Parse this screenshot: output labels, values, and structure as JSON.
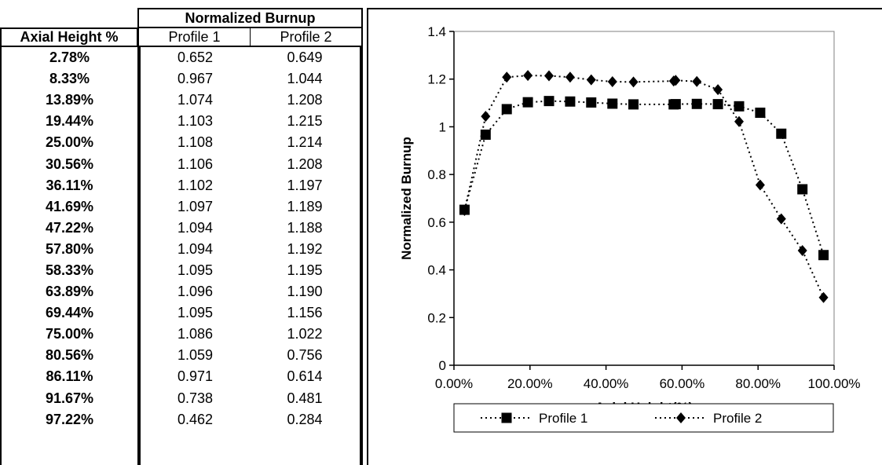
{
  "table": {
    "group_header": "Normalized Burnup",
    "col_axial_header": "Axial Height %",
    "col_p1_header": "Profile 1",
    "col_p2_header": "Profile 2",
    "rows": [
      {
        "axial": "2.78%",
        "p1": "0.652",
        "p2": "0.649"
      },
      {
        "axial": "8.33%",
        "p1": "0.967",
        "p2": "1.044"
      },
      {
        "axial": "13.89%",
        "p1": "1.074",
        "p2": "1.208"
      },
      {
        "axial": "19.44%",
        "p1": "1.103",
        "p2": "1.215"
      },
      {
        "axial": "25.00%",
        "p1": "1.108",
        "p2": "1.214"
      },
      {
        "axial": "30.56%",
        "p1": "1.106",
        "p2": "1.208"
      },
      {
        "axial": "36.11%",
        "p1": "1.102",
        "p2": "1.197"
      },
      {
        "axial": "41.69%",
        "p1": "1.097",
        "p2": "1.189"
      },
      {
        "axial": "47.22%",
        "p1": "1.094",
        "p2": "1.188"
      },
      {
        "axial": "57.80%",
        "p1": "1.094",
        "p2": "1.192"
      },
      {
        "axial": "58.33%",
        "p1": "1.095",
        "p2": "1.195"
      },
      {
        "axial": "63.89%",
        "p1": "1.096",
        "p2": "1.190"
      },
      {
        "axial": "69.44%",
        "p1": "1.095",
        "p2": "1.156"
      },
      {
        "axial": "75.00%",
        "p1": "1.086",
        "p2": "1.022"
      },
      {
        "axial": "80.56%",
        "p1": "1.059",
        "p2": "0.756"
      },
      {
        "axial": "86.11%",
        "p1": "0.971",
        "p2": "0.614"
      },
      {
        "axial": "91.67%",
        "p1": "0.738",
        "p2": "0.481"
      },
      {
        "axial": "97.22%",
        "p1": "0.462",
        "p2": "0.284"
      }
    ]
  },
  "chart_data": {
    "type": "line",
    "title": "",
    "xlabel": "Axial Height(%)",
    "ylabel": "Normalized Burnup",
    "xlim": [
      0,
      100
    ],
    "ylim": [
      0,
      1.4
    ],
    "x_ticks": [
      0,
      20,
      40,
      60,
      80,
      100
    ],
    "x_tick_labels": [
      "0.00%",
      "20.00%",
      "40.00%",
      "60.00%",
      "80.00%",
      "100.00%"
    ],
    "y_ticks": [
      0,
      0.2,
      0.4,
      0.6,
      0.8,
      1,
      1.2,
      1.4
    ],
    "y_tick_labels": [
      "0",
      "0.2",
      "0.4",
      "0.6",
      "0.8",
      "1",
      "1.2",
      "1.4"
    ],
    "grid": false,
    "legend_position": "bottom",
    "x": [
      2.78,
      8.33,
      13.89,
      19.44,
      25.0,
      30.56,
      36.11,
      41.69,
      47.22,
      57.8,
      58.33,
      63.89,
      69.44,
      75.0,
      80.56,
      86.11,
      91.67,
      97.22
    ],
    "series": [
      {
        "name": "Profile 1",
        "marker": "square",
        "line_style": "dotted",
        "color": "#000000",
        "values": [
          0.652,
          0.967,
          1.074,
          1.103,
          1.108,
          1.106,
          1.102,
          1.097,
          1.094,
          1.094,
          1.095,
          1.096,
          1.095,
          1.086,
          1.059,
          0.971,
          0.738,
          0.462
        ]
      },
      {
        "name": "Profile 2",
        "marker": "diamond",
        "line_style": "dotted",
        "color": "#000000",
        "values": [
          0.649,
          1.044,
          1.208,
          1.215,
          1.214,
          1.208,
          1.197,
          1.189,
          1.188,
          1.192,
          1.195,
          1.19,
          1.156,
          1.022,
          0.756,
          0.614,
          0.481,
          0.284
        ]
      }
    ]
  }
}
